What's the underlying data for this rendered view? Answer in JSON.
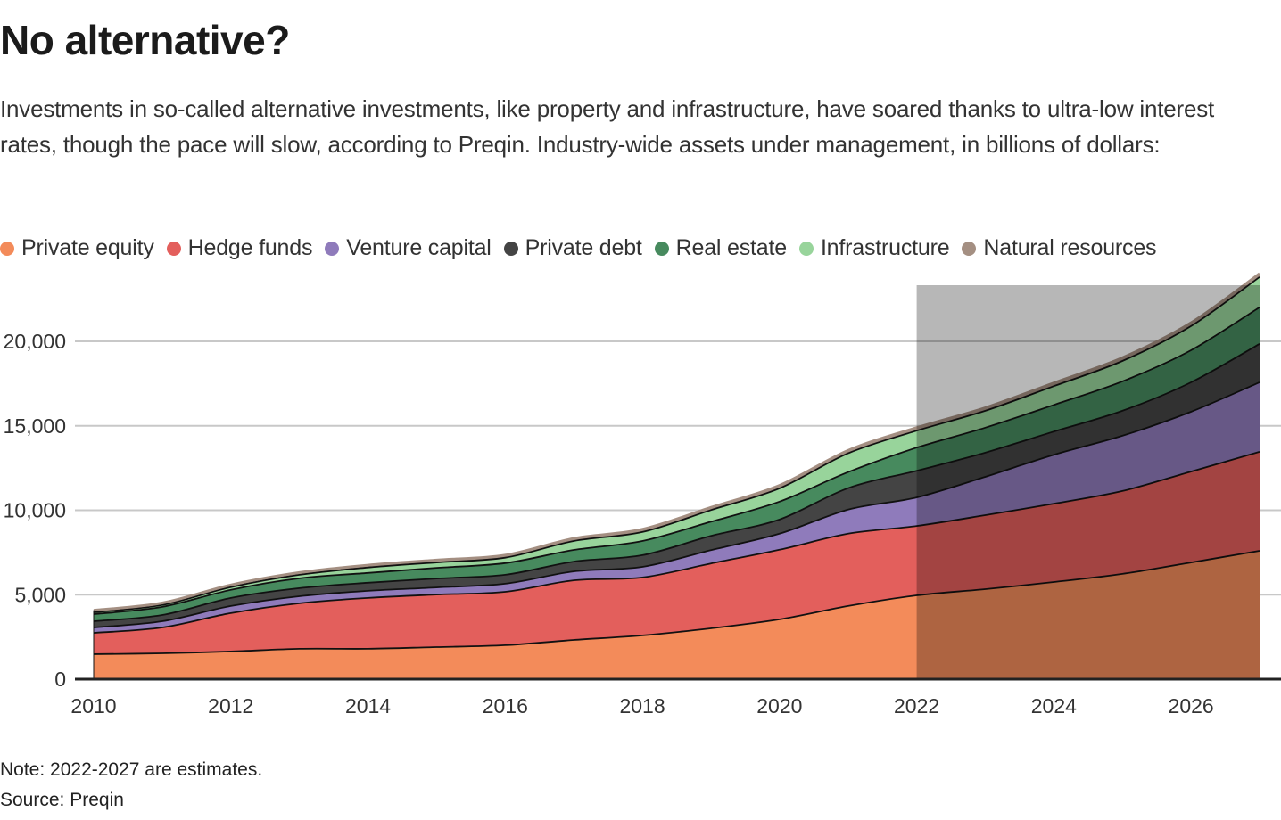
{
  "header": {
    "title": "No alternative?",
    "subtitle": "Investments in so-called alternative investments, like property and infrastructure, have soared thanks to ultra-low interest rates, though the pace will slow, according to Preqin. Industry-wide assets under management, in billions of dollars:"
  },
  "footer": {
    "note": "Note: 2022-2027 are estimates.",
    "source": "Source: Preqin"
  },
  "chart_data": {
    "type": "area",
    "stacked": true,
    "title": "No alternative?",
    "xlabel": "",
    "ylabel": "",
    "x": [
      2010,
      2011,
      2012,
      2013,
      2014,
      2015,
      2016,
      2017,
      2018,
      2019,
      2020,
      2021,
      2022,
      2023,
      2024,
      2025,
      2026,
      2027
    ],
    "xlim": [
      2010,
      2027
    ],
    "ylim": [
      0,
      23000
    ],
    "x_ticks": [
      2010,
      2012,
      2014,
      2016,
      2018,
      2020,
      2022,
      2024,
      2026
    ],
    "x_tick_labels": [
      "2010",
      "2012",
      "2014",
      "2016",
      "2018",
      "2020",
      "2022",
      "2024",
      "2026"
    ],
    "y_ticks": [
      0,
      5000,
      10000,
      15000,
      20000
    ],
    "y_tick_labels": [
      "0",
      "5,000",
      "10,000",
      "15,000",
      "20,000"
    ],
    "grid": true,
    "legend_position": "top-left",
    "shaded_region": {
      "from": 2022,
      "to": 2027,
      "label": "estimates",
      "color": "#8a8a8a"
    },
    "series": [
      {
        "name": "Private equity",
        "color": "#f38b5a",
        "values": [
          1480,
          1530,
          1640,
          1800,
          1800,
          1900,
          2010,
          2320,
          2590,
          3010,
          3540,
          4330,
          4960,
          5330,
          5750,
          6230,
          6910,
          7600
        ]
      },
      {
        "name": "Hedge funds",
        "color": "#e35f5c",
        "values": [
          1260,
          1530,
          2270,
          2690,
          3010,
          3110,
          3160,
          3530,
          3430,
          3840,
          4120,
          4280,
          4110,
          4380,
          4640,
          4910,
          5380,
          5860
        ]
      },
      {
        "name": "Venture capital",
        "color": "#8f7bbb",
        "values": [
          320,
          370,
          420,
          420,
          420,
          420,
          480,
          530,
          630,
          790,
          950,
          1430,
          1690,
          2270,
          2900,
          3270,
          3540,
          4120
        ]
      },
      {
        "name": "Private debt",
        "color": "#444444",
        "values": [
          370,
          370,
          480,
          480,
          480,
          530,
          530,
          580,
          690,
          840,
          840,
          1270,
          1580,
          1430,
          1370,
          1480,
          1740,
          2270
        ]
      },
      {
        "name": "Real estate",
        "color": "#478a5e",
        "values": [
          420,
          480,
          480,
          580,
          580,
          630,
          690,
          690,
          840,
          840,
          1060,
          950,
          1370,
          1480,
          1580,
          1740,
          1900,
          2170
        ]
      },
      {
        "name": "Infrastructure",
        "color": "#98d49b",
        "values": [
          110,
          110,
          160,
          210,
          320,
          320,
          320,
          530,
          530,
          690,
          790,
          1110,
          1000,
          1000,
          1110,
          1210,
          1430,
          1790
        ]
      },
      {
        "name": "Natural resources",
        "color": "#a48f82",
        "values": [
          120,
          120,
          130,
          130,
          140,
          140,
          150,
          150,
          160,
          160,
          170,
          170,
          180,
          180,
          190,
          190,
          200,
          200
        ]
      }
    ]
  }
}
